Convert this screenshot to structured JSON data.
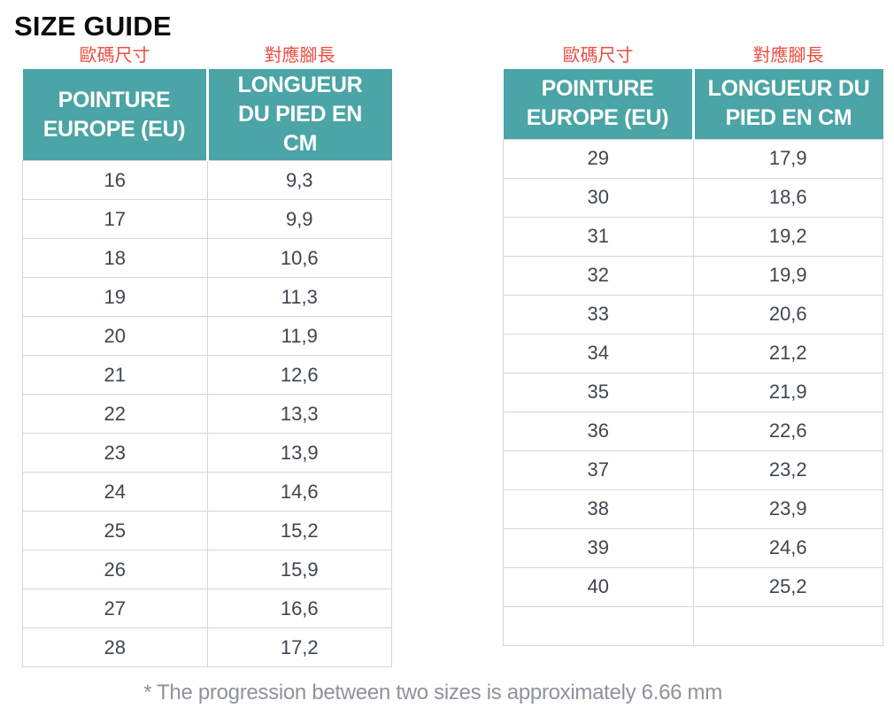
{
  "title": "SIZE GUIDE",
  "footnote": "* The progression between two sizes is approximately 6.66 mm",
  "colors": {
    "header_bg": "#4ba4a5",
    "caption_red": "#ee4c41",
    "cell_text": "#3f464d",
    "grid_line": "#d5d5d5",
    "footnote_gray": "#8d939b"
  },
  "tables": [
    {
      "captions": {
        "size": "歐碼尺寸",
        "length": "對應腳長"
      },
      "headers": {
        "size": "POINTURE EUROPE (EU)",
        "length": "LONGUEUR DU PIED EN CM"
      },
      "rows": [
        [
          "16",
          "9,3"
        ],
        [
          "17",
          "9,9"
        ],
        [
          "18",
          "10,6"
        ],
        [
          "19",
          "11,3"
        ],
        [
          "20",
          "11,9"
        ],
        [
          "21",
          "12,6"
        ],
        [
          "22",
          "13,3"
        ],
        [
          "23",
          "13,9"
        ],
        [
          "24",
          "14,6"
        ],
        [
          "25",
          "15,2"
        ],
        [
          "26",
          "15,9"
        ],
        [
          "27",
          "16,6"
        ],
        [
          "28",
          "17,2"
        ]
      ]
    },
    {
      "captions": {
        "size": "歐碼尺寸",
        "length": "對應腳長"
      },
      "headers": {
        "size": "POINTURE EUROPE (EU)",
        "length": "LONGUEUR DU PIED EN CM"
      },
      "rows": [
        [
          "29",
          "17,9"
        ],
        [
          "30",
          "18,6"
        ],
        [
          "31",
          "19,2"
        ],
        [
          "32",
          "19,9"
        ],
        [
          "33",
          "20,6"
        ],
        [
          "34",
          "21,2"
        ],
        [
          "35",
          "21,9"
        ],
        [
          "36",
          "22,6"
        ],
        [
          "37",
          "23,2"
        ],
        [
          "38",
          "23,9"
        ],
        [
          "39",
          "24,6"
        ],
        [
          "40",
          "25,2"
        ],
        [
          "",
          ""
        ]
      ]
    }
  ]
}
